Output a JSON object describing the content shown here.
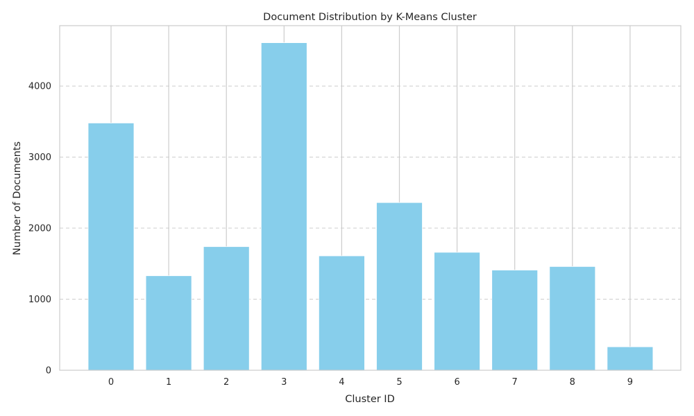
{
  "chart_data": {
    "type": "bar",
    "title": "Document Distribution by K-Means Cluster",
    "xlabel": "Cluster ID",
    "ylabel": "Number of Documents",
    "categories": [
      "0",
      "1",
      "2",
      "3",
      "4",
      "5",
      "6",
      "7",
      "8",
      "9"
    ],
    "values": [
      3480,
      1330,
      1740,
      4610,
      1610,
      2360,
      1660,
      1410,
      1460,
      330
    ],
    "ylim": [
      0,
      4850
    ],
    "yticks": [
      0,
      1000,
      2000,
      3000,
      4000
    ],
    "bar_color": "#87CEEB",
    "grid": {
      "x": "solid",
      "y": "dashed"
    },
    "legend": "none"
  }
}
